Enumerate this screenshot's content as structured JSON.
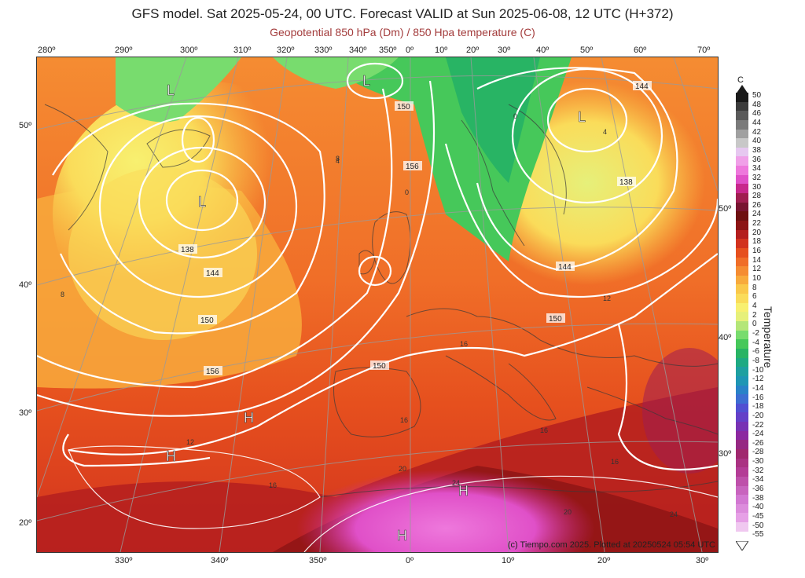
{
  "header": {
    "title": "GFS model. Sat 2025-05-24, 00 UTC. Forecast VALID at Sun 2025-06-08, 12 UTC (H+372)",
    "subtitle": "Geopotential 850 hPa (Dm) / 850 Hpa temperature (C)"
  },
  "top_lon_labels": [
    "280º",
    "290º",
    "300º",
    "310º",
    "320º",
    "330º",
    "340º",
    "350º",
    "0º",
    "10º",
    "20º",
    "30º",
    "40º",
    "50º",
    "60º",
    "70º"
  ],
  "bottom_lon_labels": [
    "330º",
    "340º",
    "350º",
    "0º",
    "10º",
    "20º",
    "30º"
  ],
  "left_lat_labels": [
    "50º",
    "40º",
    "30º",
    "20º"
  ],
  "right_lat_labels": [
    "50º",
    "40º",
    "30º"
  ],
  "legend": {
    "unit": "C",
    "title": "Temperature",
    "values": [
      "50",
      "48",
      "46",
      "44",
      "42",
      "40",
      "38",
      "36",
      "34",
      "32",
      "30",
      "28",
      "26",
      "24",
      "22",
      "20",
      "18",
      "16",
      "14",
      "12",
      "10",
      "8",
      "6",
      "4",
      "2",
      "0",
      "-2",
      "-4",
      "-6",
      "-8",
      "-10",
      "-12",
      "-14",
      "-16",
      "-18",
      "-20",
      "-22",
      "-24",
      "-26",
      "-28",
      "-30",
      "-32",
      "-34",
      "-36",
      "-38",
      "-40",
      "-45",
      "-50",
      "-55"
    ],
    "colors": [
      "#1a1a1a",
      "#3c3c3c",
      "#5a5a5a",
      "#7a7a7a",
      "#a0a0a0",
      "#c8c8c8",
      "#e6c8f0",
      "#f0a0e8",
      "#ee78dc",
      "#e050c8",
      "#c8288c",
      "#a01e50",
      "#781430",
      "#6e1010",
      "#8c1414",
      "#b41e1e",
      "#d2321e",
      "#e6501e",
      "#f06e28",
      "#f58c32",
      "#f8aa3c",
      "#fac84a",
      "#fadc5a",
      "#f8f070",
      "#e6f07a",
      "#b4e678",
      "#78dc6e",
      "#46c85a",
      "#28b464",
      "#1eaa82",
      "#1ea0a0",
      "#1e96b4",
      "#2882c8",
      "#3c6ed2",
      "#5050d2",
      "#6440c8",
      "#7832b4",
      "#8c28a0",
      "#962882",
      "#a0286e",
      "#aa3282",
      "#b43c96",
      "#be50aa",
      "#c864be",
      "#d278d2",
      "#dc8cdc",
      "#e6a0e6",
      "#f0c8f0",
      "#ffffff"
    ]
  },
  "map_labels": {
    "lows": [
      "L",
      "L",
      "L",
      "L"
    ],
    "highs": [
      "H",
      "H",
      "H",
      "H"
    ],
    "contours": [
      "150",
      "156",
      "138",
      "144",
      "150",
      "156",
      "144",
      "150",
      "138",
      "144",
      "150"
    ],
    "temps": [
      "8",
      "8",
      "12",
      "12",
      "16",
      "16",
      "16",
      "20",
      "20",
      "24",
      "24",
      "16",
      "16",
      "4",
      "4",
      "0",
      "0"
    ]
  },
  "credit": "(c) Tiempo.com 2025. Plotted at 20250524 05:54 UTC"
}
